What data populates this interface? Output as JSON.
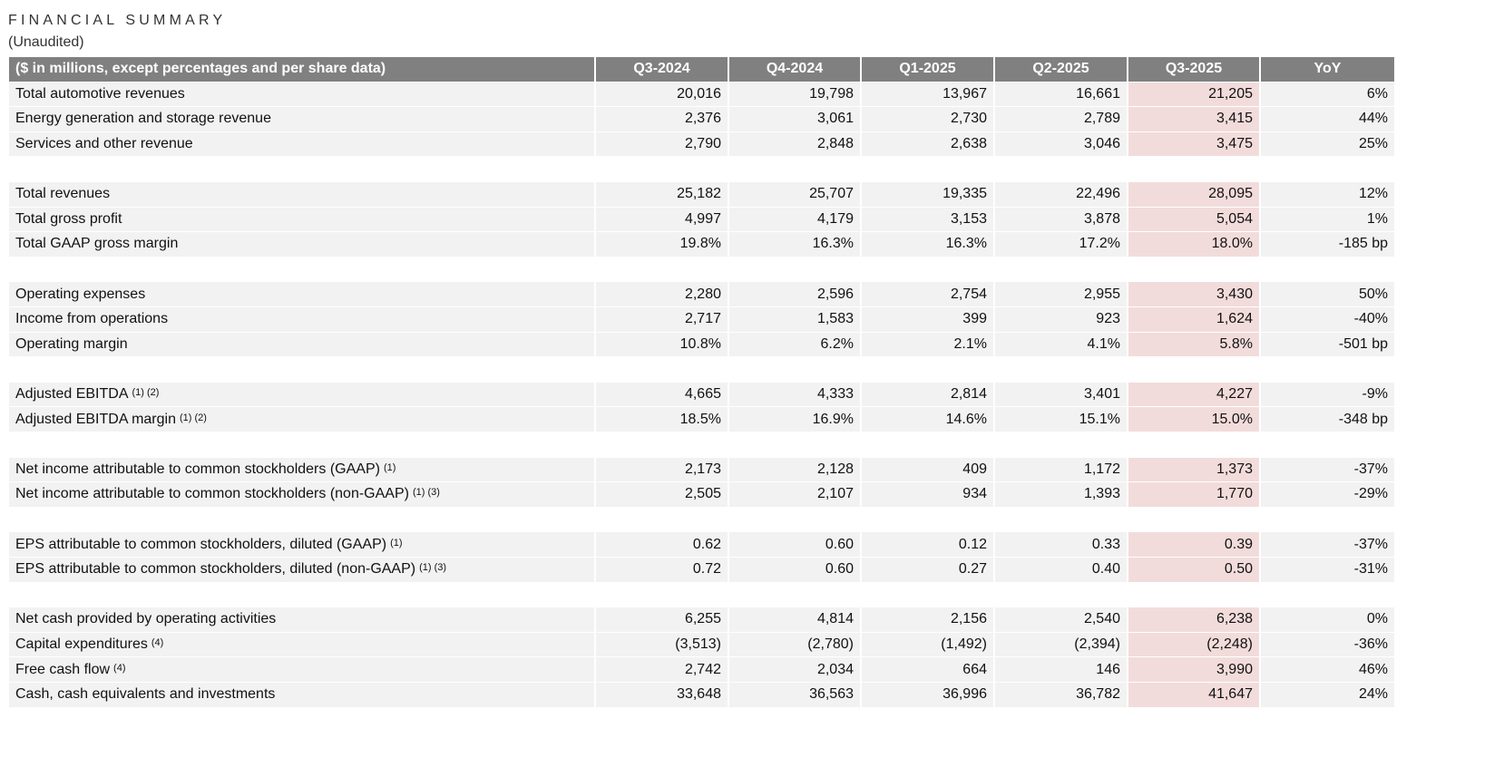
{
  "header": {
    "title": "FINANCIAL SUMMARY",
    "subtitle": "(Unaudited)"
  },
  "table": {
    "columns": [
      "($ in millions, except percentages and per share data)",
      "Q3-2024",
      "Q4-2024",
      "Q1-2025",
      "Q2-2025",
      "Q3-2025",
      "YoY"
    ],
    "groups": [
      {
        "rows": [
          {
            "label": "Total automotive revenues",
            "cells": [
              "20,016",
              "19,798",
              "13,967",
              "16,661",
              "21,205",
              "6%"
            ]
          },
          {
            "label": "Energy generation and storage revenue",
            "cells": [
              "2,376",
              "3,061",
              "2,730",
              "2,789",
              "3,415",
              "44%"
            ]
          },
          {
            "label": "Services and other revenue",
            "cells": [
              "2,790",
              "2,848",
              "2,638",
              "3,046",
              "3,475",
              "25%"
            ]
          }
        ]
      },
      {
        "rows": [
          {
            "label": "Total revenues",
            "cells": [
              "25,182",
              "25,707",
              "19,335",
              "22,496",
              "28,095",
              "12%"
            ]
          },
          {
            "label": "Total gross profit",
            "cells": [
              "4,997",
              "4,179",
              "3,153",
              "3,878",
              "5,054",
              "1%"
            ]
          },
          {
            "label": "Total GAAP gross margin",
            "cells": [
              "19.8%",
              "16.3%",
              "16.3%",
              "17.2%",
              "18.0%",
              "-185 bp"
            ]
          }
        ]
      },
      {
        "rows": [
          {
            "label": "Operating expenses",
            "cells": [
              "2,280",
              "2,596",
              "2,754",
              "2,955",
              "3,430",
              "50%"
            ]
          },
          {
            "label": "Income from operations",
            "cells": [
              "2,717",
              "1,583",
              "399",
              "923",
              "1,624",
              "-40%"
            ]
          },
          {
            "label": "Operating margin",
            "cells": [
              "10.8%",
              "6.2%",
              "2.1%",
              "4.1%",
              "5.8%",
              "-501 bp"
            ]
          }
        ]
      },
      {
        "rows": [
          {
            "label": "Adjusted EBITDA",
            "notes": "(1) (2)",
            "cells": [
              "4,665",
              "4,333",
              "2,814",
              "3,401",
              "4,227",
              "-9%"
            ]
          },
          {
            "label": "Adjusted EBITDA margin",
            "notes": "(1) (2)",
            "cells": [
              "18.5%",
              "16.9%",
              "14.6%",
              "15.1%",
              "15.0%",
              "-348 bp"
            ]
          }
        ]
      },
      {
        "rows": [
          {
            "label": "Net income attributable to common stockholders (GAAP)",
            "notes": "(1)",
            "cells": [
              "2,173",
              "2,128",
              "409",
              "1,172",
              "1,373",
              "-37%"
            ]
          },
          {
            "label": "Net income attributable to common stockholders (non-GAAP)",
            "notes": "(1) (3)",
            "cells": [
              "2,505",
              "2,107",
              "934",
              "1,393",
              "1,770",
              "-29%"
            ]
          }
        ]
      },
      {
        "rows": [
          {
            "label": "EPS attributable to common stockholders, diluted (GAAP)",
            "notes": "(1)",
            "cells": [
              "0.62",
              "0.60",
              "0.12",
              "0.33",
              "0.39",
              "-37%"
            ]
          },
          {
            "label": "EPS attributable to common stockholders, diluted (non-GAAP)",
            "notes": "(1) (3)",
            "cells": [
              "0.72",
              "0.60",
              "0.27",
              "0.40",
              "0.50",
              "-31%"
            ]
          }
        ]
      },
      {
        "rows": [
          {
            "label": "Net cash provided by operating activities",
            "cells": [
              "6,255",
              "4,814",
              "2,156",
              "2,540",
              "6,238",
              "0%"
            ]
          },
          {
            "label": "Capital expenditures",
            "notes": "(4)",
            "cells": [
              "(3,513)",
              "(2,780)",
              "(1,492)",
              "(2,394)",
              "(2,248)",
              "-36%"
            ]
          },
          {
            "label": "Free cash flow",
            "notes": "(4)",
            "cells": [
              "2,742",
              "2,034",
              "664",
              "146",
              "3,990",
              "46%"
            ]
          },
          {
            "label": "Cash, cash equivalents and investments",
            "cells": [
              "33,648",
              "36,563",
              "36,996",
              "36,782",
              "41,647",
              "24%"
            ]
          }
        ]
      }
    ]
  }
}
